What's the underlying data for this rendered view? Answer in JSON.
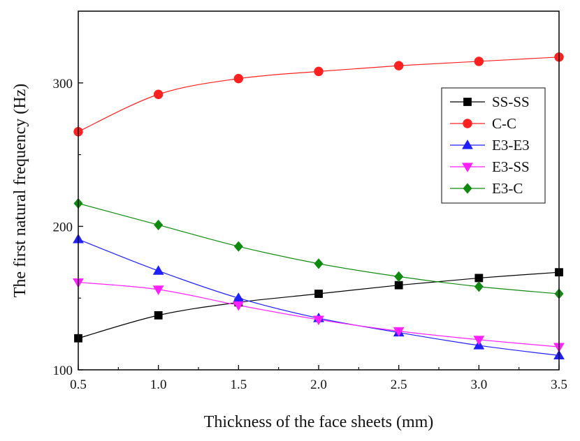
{
  "chart_data": {
    "type": "line",
    "title": "",
    "xlabel": "Thickness of the face sheets (mm)",
    "ylabel": "The first natural frequency (Hz)",
    "xlim": [
      0.5,
      3.5
    ],
    "ylim": [
      100,
      350
    ],
    "x_ticks": [
      "0.5",
      "1.0",
      "1.5",
      "2.0",
      "2.5",
      "3.0",
      "3.5"
    ],
    "y_ticks": [
      "100",
      "200",
      "300"
    ],
    "grid": false,
    "legend_position": "top-right",
    "x": [
      0.5,
      1.0,
      1.5,
      2.0,
      2.5,
      3.0,
      3.5
    ],
    "series": [
      {
        "name": "SS-SS",
        "color": "#000000",
        "marker": "square",
        "values": [
          122,
          138,
          147,
          153,
          159,
          164,
          168
        ]
      },
      {
        "name": "C-C",
        "color": "#ff2020",
        "marker": "circle",
        "values": [
          266,
          292,
          303,
          308,
          312,
          315,
          318
        ]
      },
      {
        "name": "E3-E3",
        "color": "#1f1fff",
        "marker": "triangle-up",
        "values": [
          191,
          169,
          150,
          136,
          126,
          117,
          110
        ]
      },
      {
        "name": "E3-SS",
        "color": "#ff20ff",
        "marker": "triangle-down",
        "values": [
          161,
          156,
          145,
          135,
          127,
          121,
          116
        ]
      },
      {
        "name": "E3-C",
        "color": "#0f8a0f",
        "marker": "diamond",
        "values": [
          216,
          201,
          186,
          174,
          165,
          158,
          153
        ]
      }
    ]
  }
}
